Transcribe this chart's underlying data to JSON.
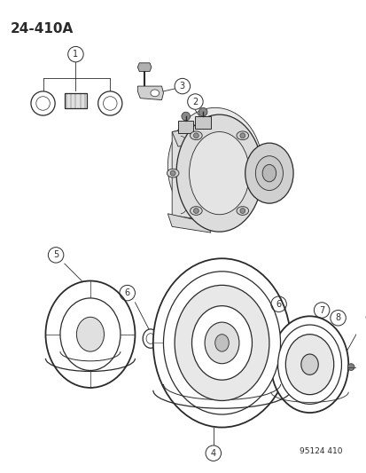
{
  "title": "24-410A",
  "footer": "95124 410",
  "bg_color": "#ffffff",
  "line_color": "#2a2a2a",
  "figsize": [
    4.14,
    5.33
  ],
  "dpi": 100
}
